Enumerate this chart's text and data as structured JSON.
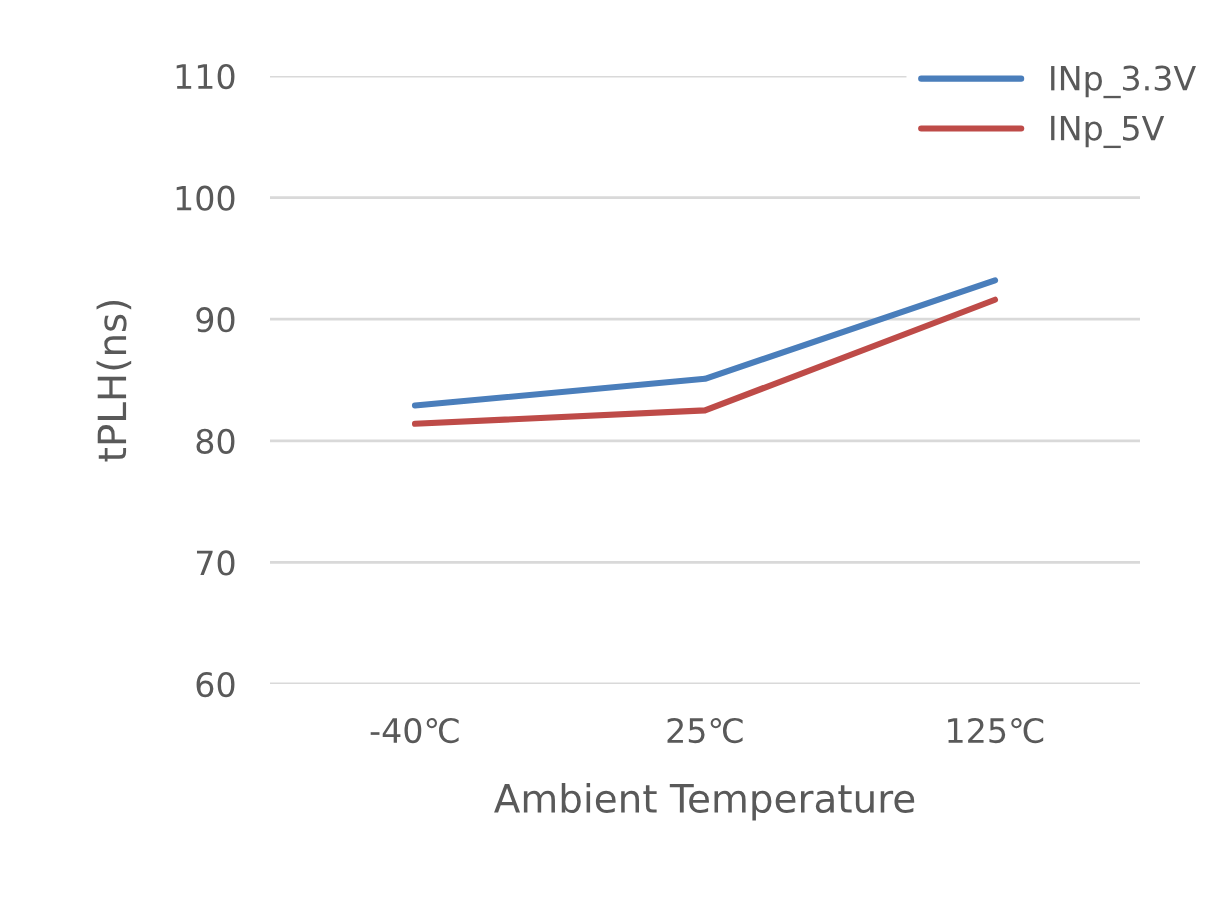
{
  "chart_data": {
    "type": "line",
    "xlabel": "Ambient Temperature",
    "ylabel": "tPLH(ns)",
    "categories": [
      "-40℃",
      "25℃",
      "125℃"
    ],
    "series": [
      {
        "name": "INp_3.3V",
        "color": "#4a7ebb",
        "values": [
          82.9,
          85.1,
          93.2
        ]
      },
      {
        "name": "INp_5V",
        "color": "#be4b48",
        "values": [
          81.4,
          82.5,
          91.6
        ]
      }
    ],
    "ylim": [
      60,
      110
    ],
    "yticks": [
      60,
      70,
      80,
      90,
      100,
      110
    ],
    "grid": "y",
    "legend": "top right"
  }
}
